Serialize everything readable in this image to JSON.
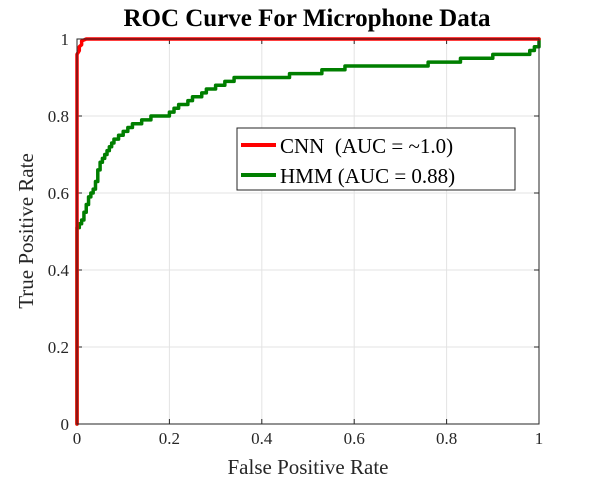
{
  "chart_data": {
    "type": "line",
    "title": "ROC Curve For Microphone Data",
    "xlabel": "False Positive Rate",
    "ylabel": "True Positive Rate",
    "xlim": [
      0,
      1
    ],
    "ylim": [
      0,
      1
    ],
    "xticks": [
      0,
      0.2,
      0.4,
      0.6,
      0.8,
      1
    ],
    "yticks": [
      0,
      0.2,
      0.4,
      0.6,
      0.8,
      1
    ],
    "xtick_labels": [
      "0",
      "0.2",
      "0.4",
      "0.6",
      "0.8",
      "1"
    ],
    "ytick_labels": [
      "0",
      "0.2",
      "0.4",
      "0.6",
      "0.8",
      "1"
    ],
    "grid": true,
    "legend_position": "upper-right",
    "series": [
      {
        "name": "CNN  (AUC = ~1.0)",
        "color": "#ff0000",
        "x": [
          0,
          0,
          0.005,
          0.005,
          0.01,
          0.01,
          0.02,
          0.03,
          0.5,
          1
        ],
        "y": [
          0,
          0.96,
          0.97,
          0.98,
          0.985,
          0.995,
          1.0,
          1.0,
          1.0,
          1.0
        ]
      },
      {
        "name": "HMM (AUC = 0.88)",
        "color": "#007f00",
        "x": [
          0,
          0,
          0.005,
          0.005,
          0.01,
          0.01,
          0.015,
          0.015,
          0.02,
          0.02,
          0.025,
          0.025,
          0.03,
          0.03,
          0.035,
          0.035,
          0.04,
          0.04,
          0.045,
          0.045,
          0.05,
          0.05,
          0.055,
          0.055,
          0.06,
          0.06,
          0.065,
          0.065,
          0.07,
          0.07,
          0.075,
          0.075,
          0.08,
          0.08,
          0.09,
          0.09,
          0.1,
          0.1,
          0.11,
          0.11,
          0.12,
          0.12,
          0.14,
          0.14,
          0.16,
          0.16,
          0.2,
          0.2,
          0.21,
          0.21,
          0.22,
          0.22,
          0.24,
          0.24,
          0.25,
          0.25,
          0.27,
          0.27,
          0.28,
          0.28,
          0.3,
          0.3,
          0.32,
          0.32,
          0.34,
          0.34,
          0.36,
          0.36,
          0.38,
          0.38,
          0.46,
          0.46,
          0.53,
          0.53,
          0.56,
          0.56,
          0.58,
          0.58,
          0.65,
          0.65,
          0.74,
          0.74,
          0.76,
          0.76,
          0.83,
          0.83,
          0.9,
          0.9,
          0.98,
          0.98,
          0.99,
          0.99,
          1.0,
          1.0
        ],
        "y": [
          0,
          0.51,
          0.51,
          0.52,
          0.52,
          0.53,
          0.53,
          0.55,
          0.55,
          0.57,
          0.57,
          0.59,
          0.59,
          0.6,
          0.6,
          0.61,
          0.61,
          0.63,
          0.63,
          0.66,
          0.66,
          0.68,
          0.68,
          0.69,
          0.69,
          0.7,
          0.7,
          0.71,
          0.71,
          0.72,
          0.72,
          0.73,
          0.73,
          0.74,
          0.74,
          0.75,
          0.75,
          0.76,
          0.76,
          0.77,
          0.77,
          0.78,
          0.78,
          0.79,
          0.79,
          0.8,
          0.8,
          0.81,
          0.81,
          0.82,
          0.82,
          0.83,
          0.83,
          0.84,
          0.84,
          0.85,
          0.85,
          0.86,
          0.86,
          0.87,
          0.87,
          0.88,
          0.88,
          0.89,
          0.89,
          0.9,
          0.9,
          0.9,
          0.9,
          0.9,
          0.9,
          0.91,
          0.91,
          0.92,
          0.92,
          0.92,
          0.92,
          0.93,
          0.93,
          0.93,
          0.93,
          0.93,
          0.93,
          0.94,
          0.94,
          0.95,
          0.95,
          0.96,
          0.96,
          0.97,
          0.97,
          0.98,
          0.98,
          1.0
        ]
      }
    ]
  }
}
